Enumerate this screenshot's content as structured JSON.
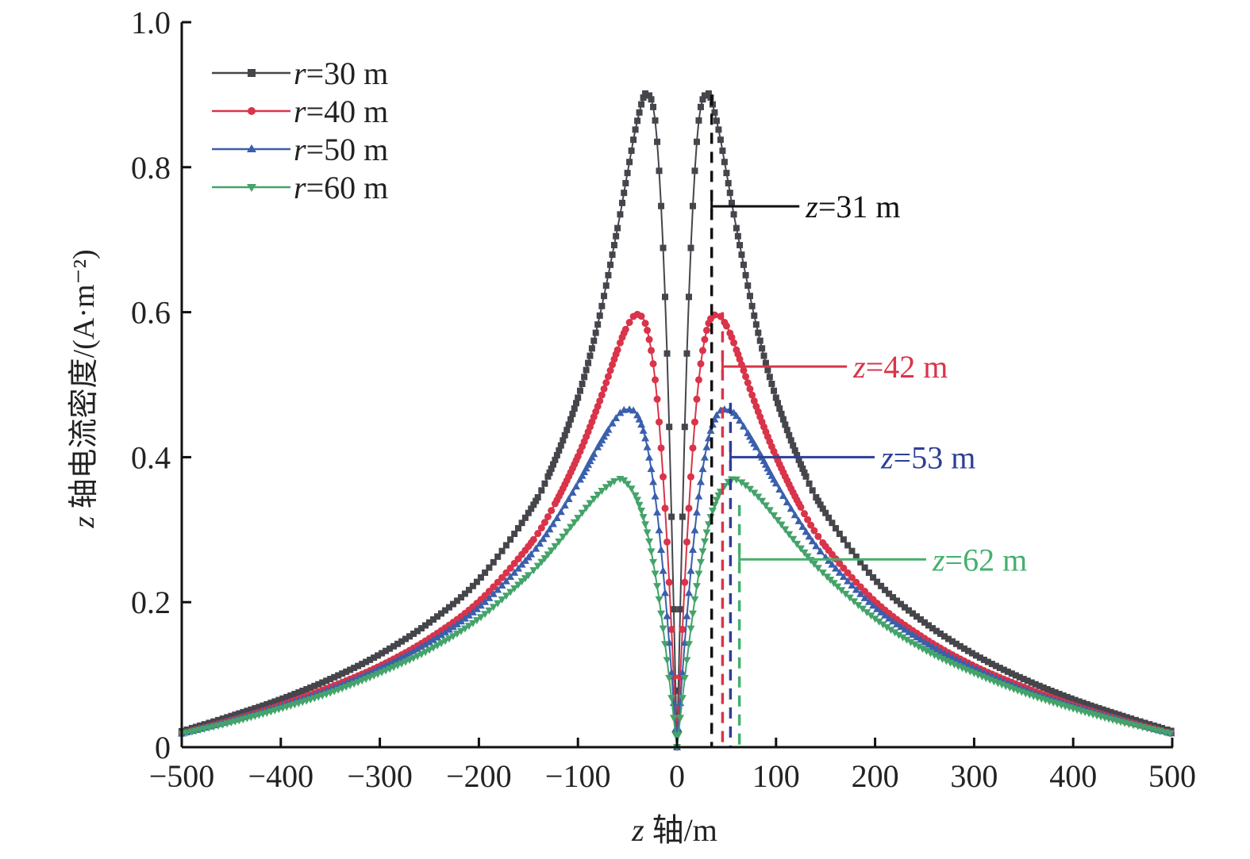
{
  "chart_data": {
    "type": "line",
    "title": "",
    "xlabel": "z 轴/m",
    "xlabel_italic": "z",
    "xlabel_rest": " 轴/m",
    "ylabel": "z 轴电流密度/(A·m⁻²)",
    "ylabel_italic": "z",
    "ylabel_rest": " 轴电流密度/(A·m⁻²)",
    "xlim": [
      -500,
      500
    ],
    "ylim": [
      0,
      1.0
    ],
    "xticks": [
      -500,
      -400,
      -300,
      -200,
      -100,
      0,
      100,
      200,
      300,
      400,
      500
    ],
    "xtick_labels": [
      "−500",
      "−400",
      "−300",
      "−200",
      "−100",
      "0",
      "100",
      "200",
      "300",
      "400",
      "500"
    ],
    "yticks": [
      0,
      0.2,
      0.4,
      0.6,
      0.8,
      1.0
    ],
    "ytick_labels": [
      "0",
      "0.2",
      "0.4",
      "0.6",
      "0.8",
      "1.0"
    ],
    "grid": false,
    "legend_position": "top-left",
    "z_abs": [
      0,
      10,
      20,
      30,
      40,
      50,
      60,
      80,
      100,
      125,
      150,
      200,
      250,
      300,
      350,
      400,
      450,
      500
    ],
    "symmetric": true,
    "series": [
      {
        "name": "r=30 m",
        "label_italic": "r",
        "label_rest": "=30 m",
        "color": "#45464b",
        "marker": "square",
        "values": [
          0,
          0.543,
          0.835,
          0.902,
          0.864,
          0.792,
          0.716,
          0.583,
          0.482,
          0.39,
          0.323,
          0.231,
          0.172,
          0.128,
          0.094,
          0.066,
          0.043,
          0.022
        ]
      },
      {
        "name": "r=40 m",
        "label_italic": "r",
        "label_rest": "=40 m",
        "color": "#d9344a",
        "marker": "circle",
        "values": [
          0,
          0.283,
          0.48,
          0.575,
          0.597,
          0.581,
          0.548,
          0.47,
          0.401,
          0.331,
          0.277,
          0.201,
          0.15,
          0.112,
          0.083,
          0.058,
          0.037,
          0.019
        ]
      },
      {
        "name": "r=50 m",
        "label_italic": "r",
        "label_rest": "=50 m",
        "color": "#3a5fad",
        "marker": "triangle-up",
        "values": [
          0,
          0.181,
          0.324,
          0.414,
          0.458,
          0.466,
          0.457,
          0.414,
          0.364,
          0.308,
          0.262,
          0.193,
          0.145,
          0.109,
          0.08,
          0.057,
          0.037,
          0.019
        ]
      },
      {
        "name": "r=60 m",
        "label_italic": "r",
        "label_rest": "=60 m",
        "color": "#44a36a",
        "marker": "triangle-down",
        "values": [
          0,
          0.12,
          0.222,
          0.296,
          0.341,
          0.363,
          0.369,
          0.348,
          0.316,
          0.274,
          0.237,
          0.177,
          0.134,
          0.102,
          0.075,
          0.053,
          0.034,
          0.018
        ]
      }
    ],
    "annotations": [
      {
        "text": "z=31 m",
        "italic": "z",
        "rest": "=31 m",
        "color": "#111111",
        "dash_z": 35,
        "line_y": 0.746,
        "text_z": 130
      },
      {
        "text": "z=42 m",
        "italic": "z",
        "rest": "=42 m",
        "color": "#d9344a",
        "dash_z": 46,
        "line_y": 0.525,
        "text_z": 178
      },
      {
        "text": "z=53 m",
        "italic": "z",
        "rest": "=53 m",
        "color": "#2e3f96",
        "dash_z": 54,
        "line_y": 0.4,
        "text_z": 206
      },
      {
        "text": "z=62 m",
        "italic": "z",
        "rest": "=62 m",
        "color": "#44b06c",
        "dash_z": 63,
        "line_y": 0.259,
        "text_z": 258
      }
    ]
  }
}
